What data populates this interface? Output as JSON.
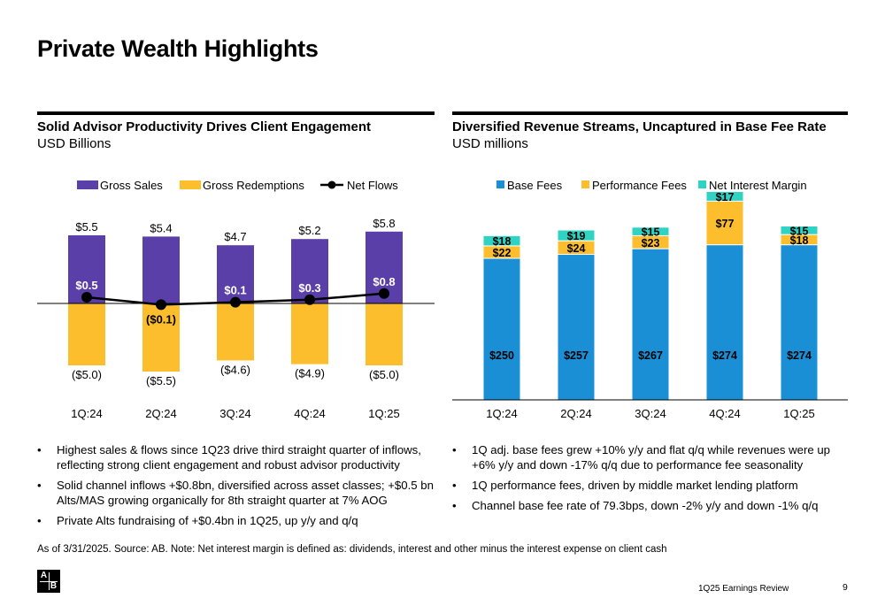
{
  "page": {
    "title": "Private Wealth Highlights",
    "footnote": "As of 3/31/2025. Source: AB. Note: Net interest margin is defined as: dividends, interest and other minus the interest expense on client cash",
    "footer": "1Q25 Earnings Review",
    "page_number": "9",
    "logo_letters": [
      "A",
      "B"
    ]
  },
  "left": {
    "title": "Solid Advisor Productivity Drives Client Engagement",
    "subtitle": "USD Billions",
    "bullets": [
      "Highest sales & flows since 1Q23 drive third straight quarter of inflows, reflecting strong client engagement and robust advisor productivity",
      "Solid channel inflows +$0.8bn, diversified across asset classes; +$0.5 bn Alts/MAS growing organically for 8th straight quarter at 7% AOG",
      "Private Alts fundraising of +$0.4bn in 1Q25, up y/y and q/q"
    ]
  },
  "right": {
    "title": "Diversified Revenue Streams, Uncaptured in Base Fee Rate",
    "subtitle": "USD millions",
    "bullets": [
      "1Q adj. base fees grew +10% y/y and flat q/q while revenues were up +6% y/y and down -17% q/q  due to performance fee seasonality",
      "1Q performance fees, driven by middle market lending platform",
      "Channel base fee rate of 79.3bps, down -2% y/y and down -1% q/q"
    ]
  },
  "chart_data": [
    {
      "type": "bar",
      "categories": [
        "1Q:24",
        "2Q:24",
        "3Q:24",
        "4Q:24",
        "1Q:25"
      ],
      "legend_position": "top",
      "series": [
        {
          "name": "Gross Sales",
          "kind": "bar",
          "color": "#5B3FA8",
          "values": [
            5.5,
            5.4,
            4.7,
            5.2,
            5.8
          ],
          "labels": [
            "$5.5",
            "$5.4",
            "$4.7",
            "$5.2",
            "$5.8"
          ]
        },
        {
          "name": "Gross Redemptions",
          "kind": "bar",
          "color": "#FDBE2D",
          "values": [
            -5.0,
            -5.5,
            -4.6,
            -4.9,
            -5.0
          ],
          "labels": [
            "($5.0)",
            "($5.5)",
            "($4.6)",
            "($4.9)",
            "($5.0)"
          ]
        },
        {
          "name": "Net Flows",
          "kind": "line",
          "color": "#000000",
          "values": [
            0.5,
            -0.1,
            0.1,
            0.3,
            0.8
          ],
          "labels": [
            "$0.5",
            "($0.1)",
            "$0.1",
            "$0.3",
            "$0.8"
          ]
        }
      ]
    },
    {
      "type": "bar",
      "stacked": true,
      "categories": [
        "1Q:24",
        "2Q:24",
        "3Q:24",
        "4Q:24",
        "1Q:25"
      ],
      "legend_position": "top",
      "series": [
        {
          "name": "Base Fees",
          "color": "#1B8FD6",
          "values": [
            250,
            257,
            267,
            274,
            274
          ],
          "labels": [
            "$250",
            "$257",
            "$267",
            "$274",
            "$274"
          ]
        },
        {
          "name": "Performance Fees",
          "color": "#FDBE2D",
          "values": [
            22,
            24,
            23,
            77,
            18
          ],
          "labels": [
            "$22",
            "$24",
            "$23",
            "$77",
            "$18"
          ]
        },
        {
          "name": "Net Interest Margin",
          "color": "#2ED3C3",
          "values": [
            18,
            19,
            15,
            17,
            15
          ],
          "labels": [
            "$18",
            "$19",
            "$15",
            "$17",
            "$15"
          ]
        }
      ]
    }
  ]
}
